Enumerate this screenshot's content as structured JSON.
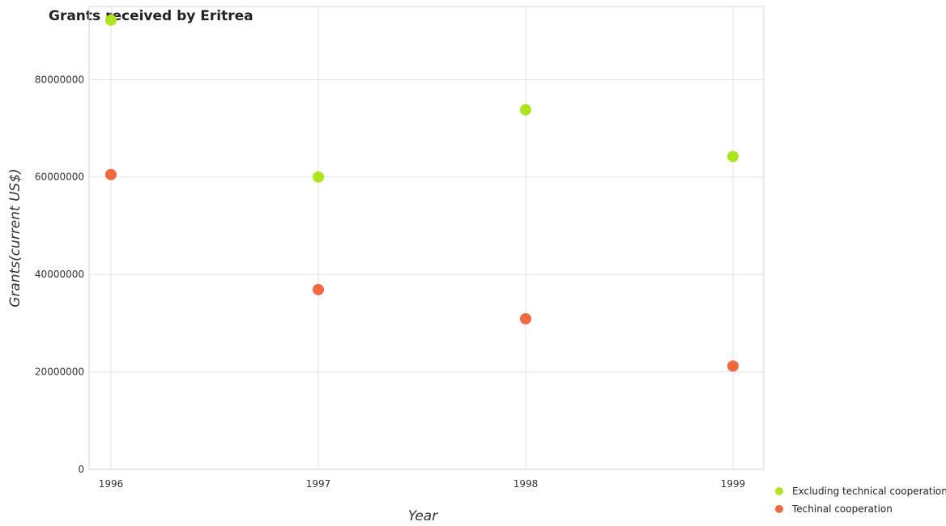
{
  "chart_data": {
    "type": "scatter",
    "title": "Grants received by Eritrea",
    "xlabel": "Year",
    "ylabel": "Grants(current US$)",
    "categories": [
      "1996",
      "1997",
      "1998",
      "1999"
    ],
    "ylim": [
      0,
      95000000
    ],
    "yticks": [
      0,
      20000000,
      40000000,
      60000000,
      80000000
    ],
    "ytick_labels": [
      "0",
      "20000000",
      "40000000",
      "60000000",
      "80000000"
    ],
    "grid": true,
    "legend_position": "bottom-right",
    "series": [
      {
        "name": "Excluding technical cooperation",
        "color": "#aee61c",
        "values": [
          92200000,
          60000000,
          73800000,
          64200000
        ]
      },
      {
        "name": "Techinal cooperation",
        "color": "#f4683e",
        "values": [
          60500000,
          36900000,
          30900000,
          21200000
        ]
      }
    ]
  }
}
